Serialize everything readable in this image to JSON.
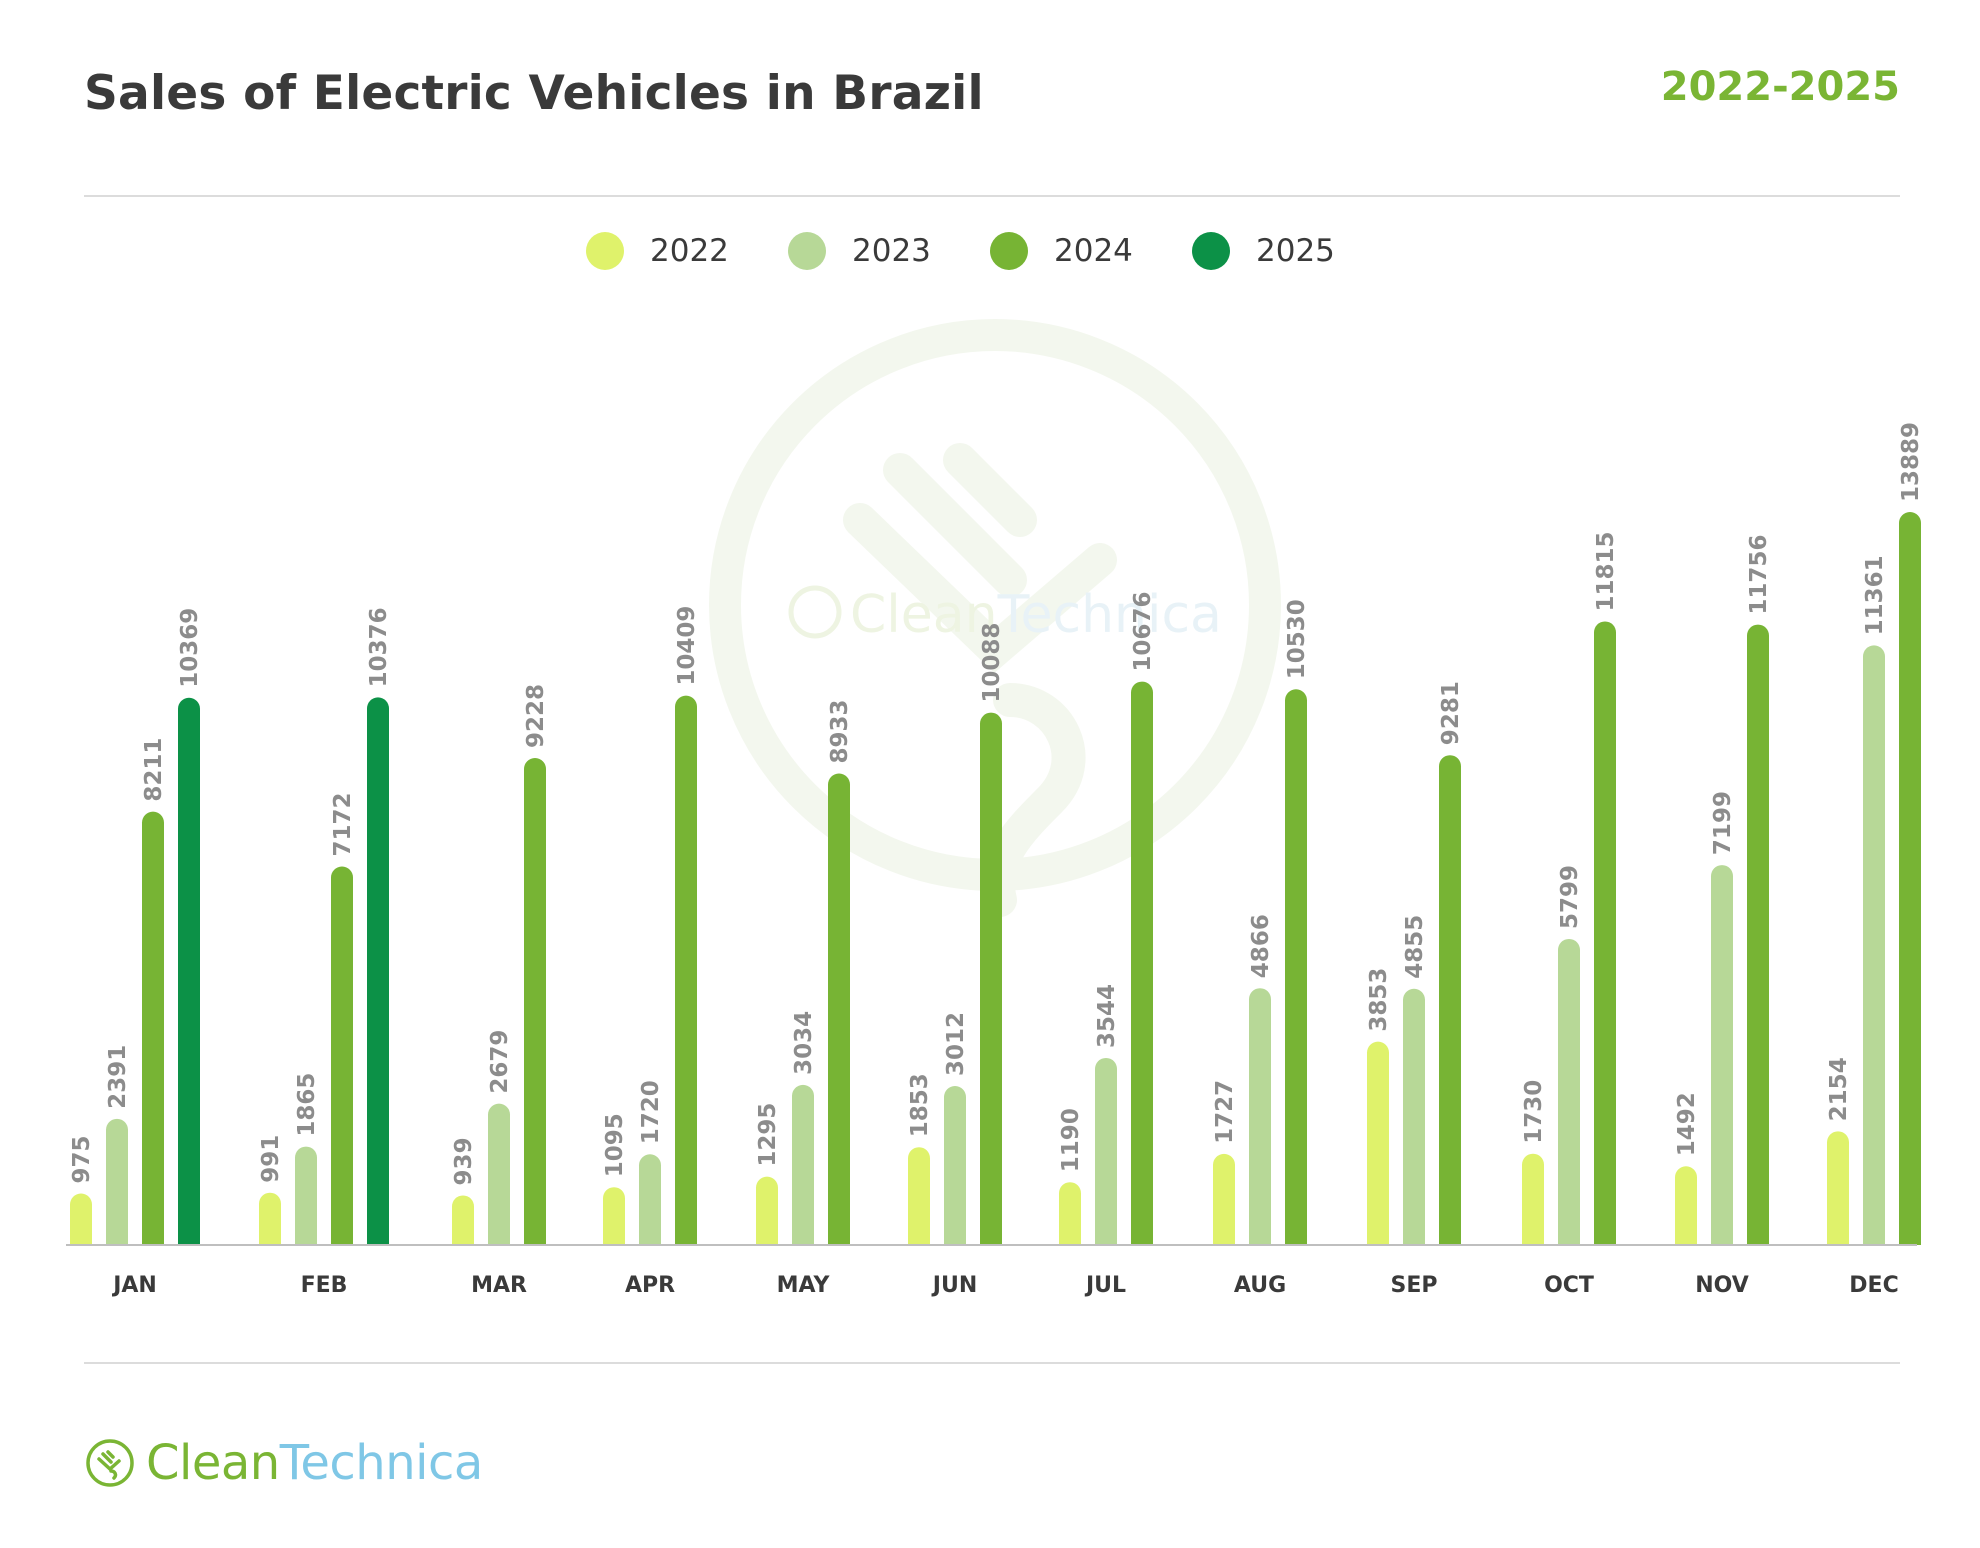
{
  "header": {
    "title": "Sales of Electric Vehicles in Brazil",
    "years": "2022-2025"
  },
  "legend": [
    {
      "label": "2022",
      "color": "#dff26b"
    },
    {
      "label": "2023",
      "color": "#b7d897"
    },
    {
      "label": "2024",
      "color": "#77b434"
    },
    {
      "label": "2025",
      "color": "#0c9147"
    }
  ],
  "logo": {
    "part1": "Clean",
    "part2": "Technica",
    "icon": "plug-icon"
  },
  "watermark": {
    "part1": "Clean",
    "part2": "Technica"
  },
  "chart_data": {
    "type": "bar",
    "title": "Sales of Electric Vehicles in Brazil",
    "subtitle": "2022-2025",
    "xlabel": "",
    "ylabel": "",
    "legend_placement": "top-center",
    "grid": false,
    "categories": [
      "JAN",
      "FEB",
      "MAR",
      "APR",
      "MAY",
      "JUN",
      "JUL",
      "AUG",
      "SEP",
      "OCT",
      "NOV",
      "DEC"
    ],
    "series": [
      {
        "name": "2022",
        "color": "#dff26b",
        "values": [
          975,
          991,
          939,
          1095,
          1295,
          1853,
          1190,
          1727,
          3853,
          1730,
          1492,
          2154
        ]
      },
      {
        "name": "2023",
        "color": "#b7d897",
        "values": [
          2391,
          1865,
          2679,
          1720,
          3034,
          3012,
          3544,
          4866,
          4855,
          5799,
          7199,
          11361
        ]
      },
      {
        "name": "2024",
        "color": "#77b434",
        "values": [
          8211,
          7172,
          9228,
          10409,
          8933,
          10088,
          10676,
          10530,
          9281,
          11815,
          11756,
          13889
        ]
      },
      {
        "name": "2025",
        "color": "#0c9147",
        "values": [
          10369,
          10376,
          null,
          null,
          null,
          null,
          null,
          null,
          null,
          null,
          null,
          null
        ]
      }
    ],
    "ylim": [
      0,
      14000
    ]
  }
}
